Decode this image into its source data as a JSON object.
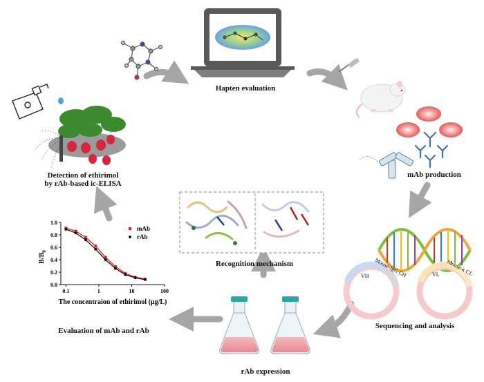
{
  "steps": {
    "hapten_evaluation": "Hapten evaluation",
    "mab_production": "mAb production",
    "sequencing_and_analysis": "Sequencing and analysis",
    "rab_expression": "rAb expression",
    "recognition_mechanism": "Recognition mechanism",
    "evaluation": "Evaluation of mAb and rAb",
    "detection_line1": "Detection of ethirimol",
    "detection_line2": "by rAb-based ic-ELISA"
  },
  "sequence_labels": {
    "vh": "VH",
    "mouse_igg_ch": "Mouse-IgG CH",
    "vl": "VL",
    "mouse_k_cl": "Mouse-κ CL"
  },
  "colors": {
    "arrow": "#a6a6a6",
    "mab_series": "#d62728",
    "rab_series": "#111111",
    "plasmid_ring": "#f6c9cb",
    "dna_green": "#7cbf3c",
    "dna_orange": "#f2a33a"
  },
  "chart_data": {
    "type": "line",
    "xlabel": "The concentraion of ethirimol (μg/L)",
    "ylabel": "B/B0",
    "xscale": "log",
    "xlim": [
      0.07,
      100
    ],
    "ylim": [
      0.0,
      1.0
    ],
    "xticks": [
      "0.1",
      "1",
      "10",
      "100"
    ],
    "yticks": [
      "0.0",
      "0.2",
      "0.4",
      "0.6",
      "0.8",
      "1.0"
    ],
    "legend_position": "top-right",
    "series": [
      {
        "name": "mAb",
        "x": [
          0.1,
          0.2,
          0.4,
          0.8,
          1.6,
          3.2,
          6.4,
          12.8,
          25.6
        ],
        "y": [
          0.91,
          0.86,
          0.76,
          0.62,
          0.44,
          0.29,
          0.18,
          0.12,
          0.09
        ]
      },
      {
        "name": "rAb",
        "x": [
          0.1,
          0.2,
          0.4,
          0.8,
          1.6,
          3.2,
          6.4,
          12.8,
          25.6
        ],
        "y": [
          0.89,
          0.83,
          0.72,
          0.57,
          0.4,
          0.26,
          0.16,
          0.11,
          0.08
        ]
      }
    ]
  }
}
